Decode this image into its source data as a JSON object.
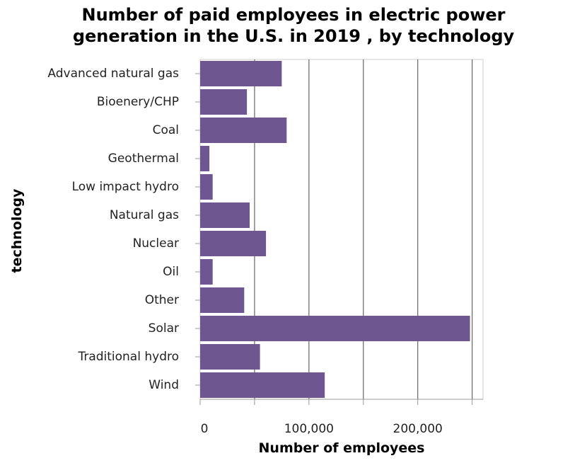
{
  "chart_data": {
    "type": "bar",
    "orientation": "horizontal",
    "title_lines": [
      "Number of paid employees in electric power",
      "generation in the U.S. in 2019 , by technology"
    ],
    "xlabel": "Number of employees",
    "ylabel": "technology",
    "categories": [
      "Advanced natural gas",
      "Bioenery/CHP",
      "Coal",
      "Geothermal",
      "Low impact hydro",
      "Natural gas",
      "Nuclear",
      "Oil",
      "Other",
      "Solar",
      "Traditional hydro",
      "Wind"
    ],
    "values": [
      75000,
      43000,
      79500,
      8500,
      11500,
      45500,
      60500,
      11500,
      40500,
      248000,
      55000,
      114500
    ],
    "x_ticks": [
      0,
      50000,
      100000,
      150000,
      200000,
      250000
    ],
    "x_tick_labels": [
      "0",
      "",
      "100,000",
      "",
      "200,000",
      ""
    ],
    "xlim": [
      0,
      260000
    ],
    "bar_color": "#6e5790",
    "grid": true
  }
}
